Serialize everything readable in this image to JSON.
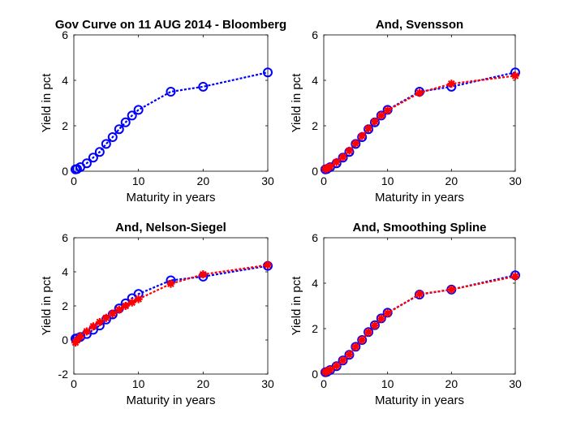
{
  "figure": {
    "background": "#ffffff"
  },
  "series_styles": {
    "market": {
      "color": "#0000ff",
      "marker": "circle"
    },
    "model": {
      "color": "#ff0000",
      "marker": "star"
    }
  },
  "chart_data": [
    {
      "type": "line",
      "title": "Gov Curve on 11 AUG 2014 - Bloomberg",
      "xlabel": "Maturity in years",
      "ylabel": "Yield in pct",
      "xlim": [
        0,
        30
      ],
      "ylim": [
        0,
        6
      ],
      "xticks": [
        "0",
        "10",
        "20",
        "30"
      ],
      "yticks": [
        "0",
        "2",
        "4",
        "6"
      ],
      "grid": false,
      "series": [
        {
          "style": "market",
          "x": [
            0.25,
            0.5,
            1,
            2,
            3,
            4,
            5,
            6,
            7,
            8,
            9,
            10,
            15,
            20,
            30
          ],
          "y": [
            0.08,
            0.1,
            0.18,
            0.35,
            0.6,
            0.85,
            1.2,
            1.5,
            1.85,
            2.15,
            2.45,
            2.7,
            3.5,
            3.72,
            4.35
          ]
        }
      ]
    },
    {
      "type": "line",
      "title": "And, Svensson",
      "xlabel": "Maturity in years",
      "ylabel": "Yield in pct",
      "xlim": [
        0,
        30
      ],
      "ylim": [
        0,
        6
      ],
      "xticks": [
        "0",
        "10",
        "20",
        "30"
      ],
      "yticks": [
        "0",
        "2",
        "4",
        "6"
      ],
      "grid": false,
      "series": [
        {
          "style": "market",
          "x": [
            0.25,
            0.5,
            1,
            2,
            3,
            4,
            5,
            6,
            7,
            8,
            9,
            10,
            15,
            20,
            30
          ],
          "y": [
            0.08,
            0.1,
            0.18,
            0.35,
            0.6,
            0.85,
            1.2,
            1.5,
            1.85,
            2.15,
            2.45,
            2.7,
            3.5,
            3.72,
            4.35
          ]
        },
        {
          "style": "model",
          "x": [
            0.25,
            0.5,
            1,
            2,
            3,
            4,
            5,
            6,
            7,
            8,
            9,
            10,
            15,
            20,
            30
          ],
          "y": [
            0.1,
            0.12,
            0.2,
            0.4,
            0.62,
            0.9,
            1.22,
            1.55,
            1.88,
            2.18,
            2.45,
            2.68,
            3.45,
            3.85,
            4.2
          ]
        }
      ]
    },
    {
      "type": "line",
      "title": "And, Nelson-Siegel",
      "xlabel": "Maturity in years",
      "ylabel": "Yield in pct",
      "xlim": [
        0,
        30
      ],
      "ylim": [
        -2,
        6
      ],
      "xticks": [
        "0",
        "10",
        "20",
        "30"
      ],
      "yticks": [
        "-2",
        "0",
        "2",
        "4",
        "6"
      ],
      "grid": false,
      "series": [
        {
          "style": "market",
          "x": [
            0.25,
            0.5,
            1,
            2,
            3,
            4,
            5,
            6,
            7,
            8,
            9,
            10,
            15,
            20,
            30
          ],
          "y": [
            0.08,
            0.1,
            0.18,
            0.35,
            0.6,
            0.85,
            1.2,
            1.5,
            1.85,
            2.15,
            2.45,
            2.7,
            3.5,
            3.72,
            4.35
          ]
        },
        {
          "style": "model",
          "x": [
            0.25,
            0.5,
            1,
            2,
            3,
            4,
            5,
            6,
            7,
            8,
            9,
            10,
            15,
            20,
            30
          ],
          "y": [
            -0.15,
            0.0,
            0.2,
            0.5,
            0.8,
            1.05,
            1.3,
            1.55,
            1.78,
            2.0,
            2.2,
            2.4,
            3.3,
            3.85,
            4.4
          ]
        }
      ]
    },
    {
      "type": "line",
      "title": "And, Smoothing Spline",
      "xlabel": "Maturity in years",
      "ylabel": "Yield in pct",
      "xlim": [
        0,
        30
      ],
      "ylim": [
        0,
        6
      ],
      "xticks": [
        "0",
        "10",
        "20",
        "30"
      ],
      "yticks": [
        "0",
        "2",
        "4",
        "6"
      ],
      "grid": false,
      "series": [
        {
          "style": "market",
          "x": [
            0.25,
            0.5,
            1,
            2,
            3,
            4,
            5,
            6,
            7,
            8,
            9,
            10,
            15,
            20,
            30
          ],
          "y": [
            0.08,
            0.1,
            0.18,
            0.35,
            0.6,
            0.85,
            1.2,
            1.5,
            1.85,
            2.15,
            2.45,
            2.7,
            3.5,
            3.72,
            4.35
          ]
        },
        {
          "style": "model",
          "x": [
            0.25,
            0.5,
            1,
            2,
            3,
            4,
            5,
            6,
            7,
            8,
            9,
            10,
            15,
            20,
            30
          ],
          "y": [
            0.09,
            0.11,
            0.19,
            0.36,
            0.6,
            0.86,
            1.2,
            1.5,
            1.84,
            2.14,
            2.44,
            2.68,
            3.52,
            3.72,
            4.3
          ]
        }
      ]
    }
  ]
}
